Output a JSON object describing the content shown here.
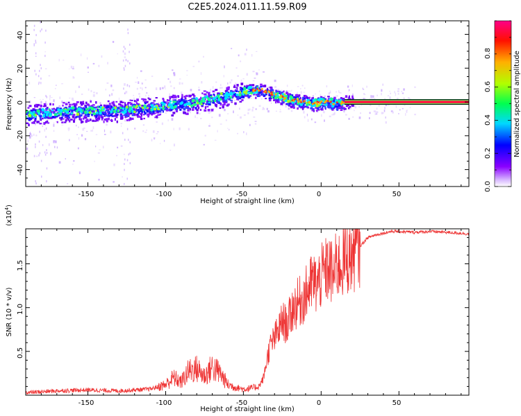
{
  "chart_data": [
    {
      "type": "heatmap",
      "title": "C2E5.2024.011.11.59.R09",
      "xlabel": "Height of straight line (km)",
      "ylabel": "Frequency (Hz)",
      "xlim": [
        -190,
        95
      ],
      "ylim": [
        -50,
        48
      ],
      "xticks": [
        "-150",
        "-100",
        "-50",
        "0",
        "50"
      ],
      "yticks": [
        "40",
        "20",
        "0",
        "-20",
        "-40"
      ],
      "colorbar": {
        "label": "Normalized spectral amplitude",
        "range": [
          0.0,
          1.0
        ],
        "ticks": [
          "0.0",
          "0.2",
          "0.4",
          "0.6",
          "0.8"
        ],
        "colors": [
          "#ffffff",
          "#c9a0ff",
          "#7b00ff",
          "#0000ff",
          "#00e0ff",
          "#00ff40",
          "#c8ff00",
          "#ff9900",
          "#ff0000",
          "#ff0080"
        ]
      },
      "ridge": {
        "x": [
          -188,
          -170,
          -150,
          -130,
          -110,
          -100,
          -90,
          -80,
          -70,
          -60,
          -52,
          -45,
          -38,
          -32,
          -25,
          -18,
          -10,
          -5,
          0,
          5,
          10,
          15,
          20,
          30,
          40,
          50,
          60,
          70,
          80,
          95
        ],
        "y": [
          -7,
          -6,
          -5,
          -5,
          -3,
          -2,
          -1,
          0,
          2,
          4,
          6,
          7,
          7,
          5,
          3,
          1,
          0,
          -1,
          0,
          0,
          -1,
          0,
          0,
          0,
          0,
          0,
          0,
          0,
          0,
          0
        ]
      }
    },
    {
      "type": "line",
      "xlabel": "Height of straight line (km)",
      "ylabel": "SNR (10 * v/v)",
      "scale_label": "(x10",
      "scale_exp": "4",
      "scale_close": ")",
      "xlim": [
        -190,
        95
      ],
      "ylim": [
        0,
        19000
      ],
      "xticks": [
        "-150",
        "-100",
        "-50",
        "0",
        "50"
      ],
      "yticks": [
        "0.5",
        "1.0",
        "1.5"
      ],
      "line_color": "#ee3333",
      "series": [
        {
          "name": "SNR",
          "x": [
            -188,
            -170,
            -150,
            -130,
            -110,
            -100,
            -95,
            -90,
            -85,
            -80,
            -75,
            -70,
            -65,
            -60,
            -55,
            -50,
            -45,
            -40,
            -37,
            -35,
            -33,
            -30,
            -27,
            -25,
            -22,
            -20,
            -18,
            -15,
            -12,
            -10,
            -7,
            -5,
            -3,
            0,
            2,
            5,
            8,
            10,
            12,
            15,
            20,
            25,
            30,
            35,
            40,
            45,
            50,
            60,
            70,
            80,
            90,
            95
          ],
          "y": [
            300,
            500,
            600,
            500,
            700,
            1200,
            2000,
            1500,
            2800,
            3000,
            2200,
            3200,
            2500,
            1200,
            900,
            700,
            800,
            1000,
            2000,
            4000,
            5500,
            6500,
            7500,
            8500,
            8000,
            9000,
            10000,
            10500,
            11000,
            11500,
            12500,
            13000,
            12500,
            13500,
            14000,
            14500,
            13500,
            15000,
            14800,
            15500,
            16000,
            17000,
            18000,
            18300,
            18500,
            18700,
            18700,
            18600,
            18700,
            18600,
            18500,
            18400
          ]
        }
      ]
    }
  ]
}
